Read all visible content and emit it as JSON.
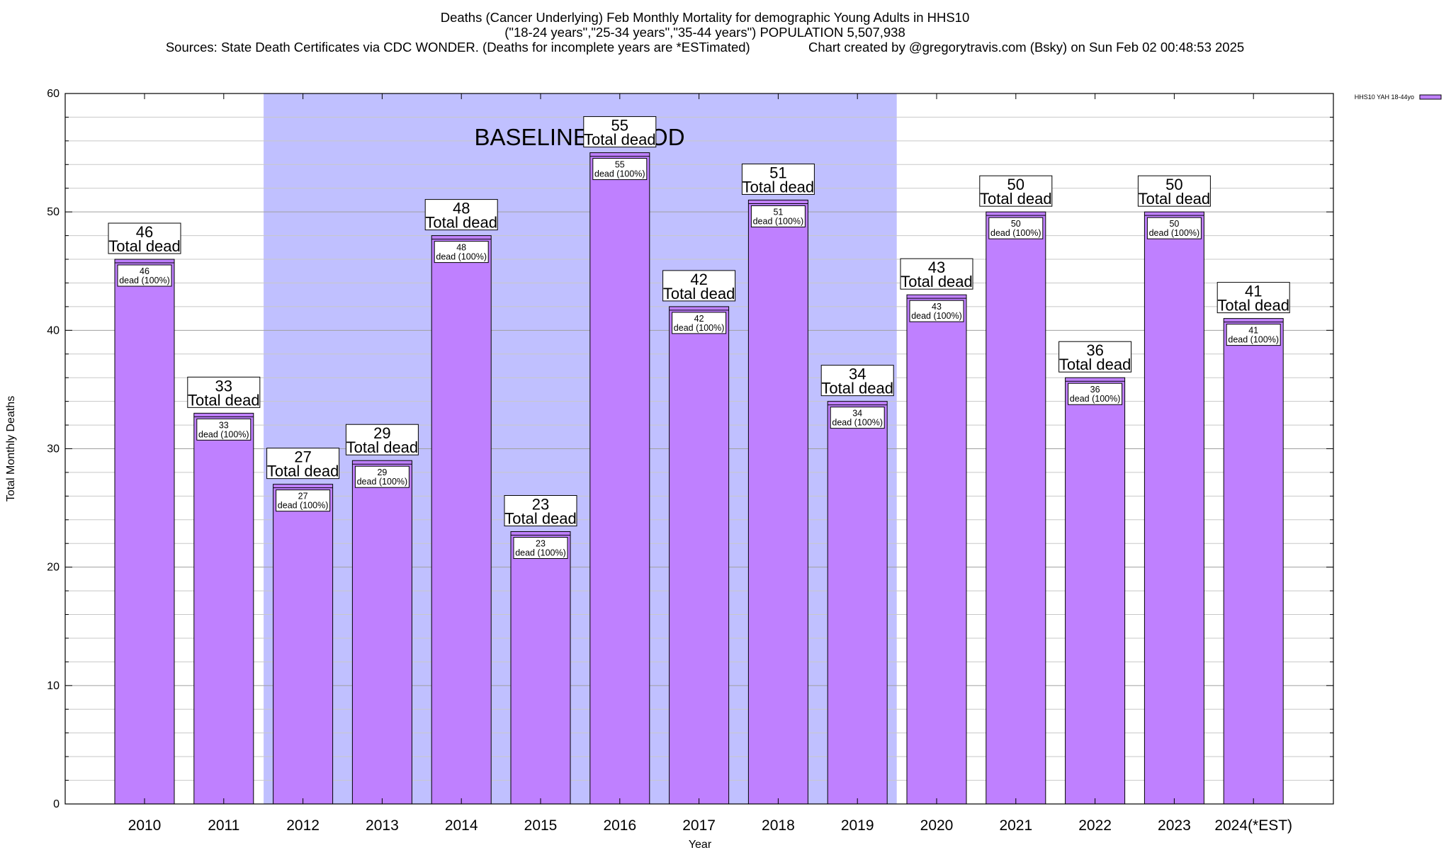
{
  "header": {
    "title": "Deaths (Cancer Underlying) Feb Monthly Mortality for demographic Young Adults in HHS10",
    "subtitle1": "(\"18-24 years\",\"25-34 years\",\"35-44 years\") POPULATION 5,507,938",
    "subtitle2": "Sources: State Death Certificates via CDC WONDER. (Deaths for incomplete years are *ESTimated)                Chart created by @gregorytravis.com (Bsky) on Sun Feb 02 00:48:53 2025"
  },
  "chart_data": {
    "type": "bar",
    "title": "Deaths (Cancer Underlying) Feb Monthly Mortality for demographic Young Adults in HHS10",
    "xlabel": "Year",
    "ylabel": "Total Monthly Deaths",
    "ylim": [
      0,
      60
    ],
    "yticks": [
      0,
      10,
      20,
      30,
      40,
      50,
      60
    ],
    "grid": true,
    "legend_position": "top-right",
    "categories": [
      "2010",
      "2011",
      "2012",
      "2013",
      "2014",
      "2015",
      "2016",
      "2017",
      "2018",
      "2019",
      "2020",
      "2021",
      "2022",
      "2023",
      "2024(*EST)"
    ],
    "series": [
      {
        "name": "HHS10 YAH 18-44yo",
        "color": "#bf80ff",
        "values": [
          46,
          33,
          27,
          29,
          48,
          23,
          55,
          42,
          51,
          34,
          43,
          50,
          36,
          50,
          41
        ]
      }
    ],
    "label_total_suffix": "Total dead",
    "label_inner_suffix": "dead (100%)",
    "baseline": {
      "label": "BASELINE PERIOD",
      "start": "2012",
      "end": "2019",
      "color": "#c0c0ff"
    }
  }
}
